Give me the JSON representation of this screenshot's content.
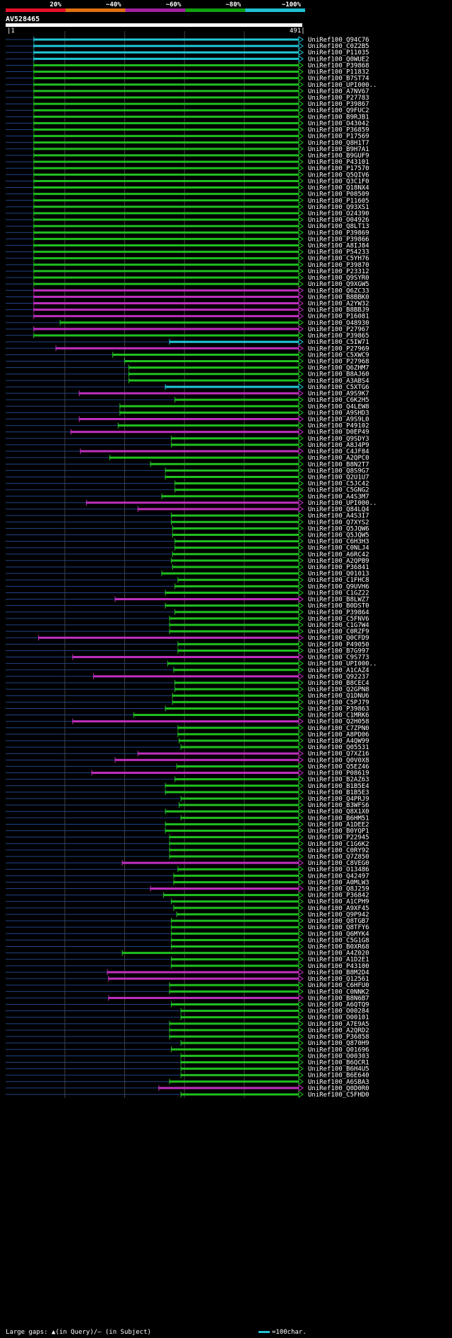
{
  "query": {
    "name": "AV528465",
    "start": 1,
    "end": 491
  },
  "scale": {
    "labels": [
      "20%",
      "~40%",
      "~60%",
      "~80%",
      "~100%"
    ],
    "colors": [
      "#e8102a",
      "#e07010",
      "#a020a0",
      "#10a010",
      "#20c0d0"
    ]
  },
  "colors": {
    "cyan": "#20c8d8",
    "green": "#20c020",
    "magenta": "#c030c0",
    "dim": "#224488",
    "insert": "#ffff80",
    "grid": "#404040"
  },
  "footer": {
    "gaps_text": "Large gaps: ▲(in Query)/— (in Subject)",
    "scale_text": "=100char."
  },
  "chart_data": {
    "type": "alignment",
    "query_length": 491,
    "hits": [
      {
        "name": "UniRef100_Q94C76",
        "start": 48,
        "color": "cyan"
      },
      {
        "name": "UniRef100_C0Z2B5",
        "start": 48,
        "color": "cyan"
      },
      {
        "name": "UniRef100_P11035",
        "start": 48,
        "color": "cyan"
      },
      {
        "name": "UniRef100_Q0WUE2",
        "start": 48,
        "color": "cyan"
      },
      {
        "name": "UniRef100_P39868",
        "start": 48,
        "color": "green"
      },
      {
        "name": "UniRef100_P11832",
        "start": 48,
        "color": "green"
      },
      {
        "name": "UniRef100_B7ST74",
        "start": 48,
        "color": "green"
      },
      {
        "name": "UniRef100_UPI000..",
        "start": 48,
        "color": "green"
      },
      {
        "name": "UniRef100_A7NV67",
        "start": 48,
        "color": "green"
      },
      {
        "name": "UniRef100_P27783",
        "start": 48,
        "color": "green"
      },
      {
        "name": "UniRef100_P39867",
        "start": 48,
        "color": "green"
      },
      {
        "name": "UniRef100_Q9FUC2",
        "start": 48,
        "color": "green"
      },
      {
        "name": "UniRef100_B9RJB1",
        "start": 48,
        "color": "green"
      },
      {
        "name": "UniRef100_O43042",
        "start": 48,
        "color": "green"
      },
      {
        "name": "UniRef100_P36859",
        "start": 48,
        "color": "green"
      },
      {
        "name": "UniRef100_P17569",
        "start": 48,
        "color": "green"
      },
      {
        "name": "UniRef100_Q8H1T7",
        "start": 48,
        "color": "green"
      },
      {
        "name": "UniRef100_B9H7A1",
        "start": 48,
        "color": "green"
      },
      {
        "name": "UniRef100_B9GUF9",
        "start": 48,
        "color": "green"
      },
      {
        "name": "UniRef100_P43101",
        "start": 48,
        "color": "green"
      },
      {
        "name": "UniRef100_P17570",
        "start": 48,
        "color": "green"
      },
      {
        "name": "UniRef100_Q5QIV6",
        "start": 48,
        "color": "green"
      },
      {
        "name": "UniRef100_Q3C1F0",
        "start": 48,
        "color": "green"
      },
      {
        "name": "UniRef100_Q18NX4",
        "start": 48,
        "color": "green"
      },
      {
        "name": "UniRef100_P08509",
        "start": 48,
        "color": "green"
      },
      {
        "name": "UniRef100_P11605",
        "start": 48,
        "color": "green"
      },
      {
        "name": "UniRef100_Q93XS1",
        "start": 48,
        "color": "green"
      },
      {
        "name": "UniRef100_O24390",
        "start": 48,
        "color": "green"
      },
      {
        "name": "UniRef100_O04926",
        "start": 48,
        "color": "green"
      },
      {
        "name": "UniRef100_Q8LT13",
        "start": 48,
        "color": "green"
      },
      {
        "name": "UniRef100_P39869",
        "start": 48,
        "color": "green"
      },
      {
        "name": "UniRef100_P39866",
        "start": 48,
        "color": "green"
      },
      {
        "name": "UniRef100_A8IJ84",
        "start": 48,
        "color": "green"
      },
      {
        "name": "UniRef100_P54233",
        "start": 48,
        "color": "green"
      },
      {
        "name": "UniRef100_C5YH76",
        "start": 48,
        "color": "green"
      },
      {
        "name": "UniRef100_P39870",
        "start": 48,
        "color": "green"
      },
      {
        "name": "UniRef100_P23312",
        "start": 48,
        "color": "green"
      },
      {
        "name": "UniRef100_Q9SYR0",
        "start": 48,
        "color": "green"
      },
      {
        "name": "UniRef100_Q9XGW5",
        "start": 48,
        "color": "green"
      },
      {
        "name": "UniRef100_Q6ZC33",
        "start": 48,
        "color": "magenta"
      },
      {
        "name": "UniRef100_B8BBK0",
        "start": 48,
        "color": "magenta"
      },
      {
        "name": "UniRef100_A2YW32",
        "start": 48,
        "color": "magenta"
      },
      {
        "name": "UniRef100_B8BBJ9",
        "start": 48,
        "color": "magenta"
      },
      {
        "name": "UniRef100_P16081",
        "start": 48,
        "color": "magenta"
      },
      {
        "name": "UniRef100_O48930",
        "start": 92,
        "color": "green"
      },
      {
        "name": "UniRef100_P27967",
        "start": 48,
        "color": "magenta"
      },
      {
        "name": "UniRef100_P39865",
        "start": 48,
        "color": "green"
      },
      {
        "name": "UniRef100_C5IW71",
        "start": 275,
        "color": "cyan"
      },
      {
        "name": "UniRef100_P27969",
        "start": 85,
        "color": "magenta"
      },
      {
        "name": "UniRef100_C5XWC9",
        "start": 180,
        "color": "green"
      },
      {
        "name": "UniRef100_P27968",
        "start": 200,
        "color": "green"
      },
      {
        "name": "UniRef100_Q6ZHM7",
        "start": 207,
        "color": "green"
      },
      {
        "name": "UniRef100_B8AJ60",
        "start": 207,
        "color": "green"
      },
      {
        "name": "UniRef100_A3ABS4",
        "start": 207,
        "color": "green"
      },
      {
        "name": "UniRef100_C5XTG6",
        "start": 268,
        "color": "cyan"
      },
      {
        "name": "UniRef100_A9S9K7",
        "start": 124,
        "color": "magenta"
      },
      {
        "name": "UniRef100_C6K2H5",
        "start": 284,
        "color": "green"
      },
      {
        "name": "UniRef100_Q4LEW8",
        "start": 192,
        "color": "green"
      },
      {
        "name": "UniRef100_A9SHD3",
        "start": 192,
        "color": "green"
      },
      {
        "name": "UniRef100_A9S9L0",
        "start": 124,
        "color": "magenta"
      },
      {
        "name": "UniRef100_P49102",
        "start": 189,
        "color": "green"
      },
      {
        "name": "UniRef100_D0EP49",
        "start": 110,
        "color": "magenta"
      },
      {
        "name": "UniRef100_Q9SDY3",
        "start": 278,
        "color": "green"
      },
      {
        "name": "UniRef100_A8J4P9",
        "start": 278,
        "color": "green"
      },
      {
        "name": "UniRef100_C4JF84",
        "start": 126,
        "color": "magenta"
      },
      {
        "name": "UniRef100_A2QPC0",
        "start": 175,
        "color": "green"
      },
      {
        "name": "UniRef100_B8N2T7",
        "start": 243,
        "color": "green"
      },
      {
        "name": "UniRef100_Q8S9G7",
        "start": 268,
        "color": "green"
      },
      {
        "name": "UniRef100_Q2U1U7",
        "start": 268,
        "color": "green"
      },
      {
        "name": "UniRef100_C5JC42",
        "start": 284,
        "color": "green"
      },
      {
        "name": "UniRef100_C5GNG2",
        "start": 284,
        "color": "green"
      },
      {
        "name": "UniRef100_A4S3M7",
        "start": 262,
        "color": "green"
      },
      {
        "name": "UniRef100_UPI000..",
        "start": 136,
        "color": "magenta"
      },
      {
        "name": "UniRef100_Q84LQ4",
        "start": 222,
        "color": "magenta"
      },
      {
        "name": "UniRef100_A4S3I7",
        "start": 278,
        "color": "green"
      },
      {
        "name": "UniRef100_Q7XYS2",
        "start": 278,
        "color": "green"
      },
      {
        "name": "UniRef100_Q5JQW6",
        "start": 280,
        "color": "green"
      },
      {
        "name": "UniRef100_Q5JQW5",
        "start": 280,
        "color": "green"
      },
      {
        "name": "UniRef100_C6H3H3",
        "start": 284,
        "color": "green"
      },
      {
        "name": "UniRef100_C0NLJ4",
        "start": 284,
        "color": "green"
      },
      {
        "name": "UniRef100_A6RC42",
        "start": 280,
        "color": "green"
      },
      {
        "name": "UniRef100_A2QPB9",
        "start": 278,
        "color": "green"
      },
      {
        "name": "UniRef100_P36841",
        "start": 280,
        "color": "green"
      },
      {
        "name": "UniRef100_Q01013",
        "start": 262,
        "color": "green"
      },
      {
        "name": "UniRef100_C1FHC8",
        "start": 289,
        "color": "green"
      },
      {
        "name": "UniRef100_Q9UVH6",
        "start": 284,
        "color": "green"
      },
      {
        "name": "UniRef100_C1GZ22",
        "start": 268,
        "color": "green"
      },
      {
        "name": "UniRef100_B8LWZ7",
        "start": 184,
        "color": "magenta"
      },
      {
        "name": "UniRef100_B0DST0",
        "start": 268,
        "color": "green"
      },
      {
        "name": "UniRef100_P39864",
        "start": 284,
        "color": "green"
      },
      {
        "name": "UniRef100_C5FNV6",
        "start": 275,
        "color": "green"
      },
      {
        "name": "UniRef100_C1G7W4",
        "start": 275,
        "color": "green"
      },
      {
        "name": "UniRef100_C0RZF9",
        "start": 275,
        "color": "green"
      },
      {
        "name": "UniRef100_Q0CFD9",
        "start": 56,
        "color": "magenta"
      },
      {
        "name": "UniRef100_P49050",
        "start": 289,
        "color": "green"
      },
      {
        "name": "UniRef100_B7G997",
        "start": 289,
        "color": "green"
      },
      {
        "name": "UniRef100_C9S773",
        "start": 113,
        "color": "magenta"
      },
      {
        "name": "UniRef100_UPI000..",
        "start": 272,
        "color": "green"
      },
      {
        "name": "UniRef100_A1CAZ4",
        "start": 282,
        "color": "green"
      },
      {
        "name": "UniRef100_Q92237",
        "start": 148,
        "color": "magenta"
      },
      {
        "name": "UniRef100_B8CEC4",
        "start": 284,
        "color": "green"
      },
      {
        "name": "UniRef100_Q2GPN8",
        "start": 284,
        "color": "green"
      },
      {
        "name": "UniRef100_Q1DNU6",
        "start": 280,
        "color": "green"
      },
      {
        "name": "UniRef100_C5PJ79",
        "start": 280,
        "color": "green"
      },
      {
        "name": "UniRef100_P39863",
        "start": 268,
        "color": "green"
      },
      {
        "name": "UniRef100_C1MRK6",
        "start": 215,
        "color": "green"
      },
      {
        "name": "UniRef100_Q2H058",
        "start": 113,
        "color": "magenta"
      },
      {
        "name": "UniRef100_C7ZPN0",
        "start": 289,
        "color": "green"
      },
      {
        "name": "UniRef100_A8PD06",
        "start": 289,
        "color": "green"
      },
      {
        "name": "UniRef100_A4QW99",
        "start": 291,
        "color": "green"
      },
      {
        "name": "UniRef100_Q05531",
        "start": 294,
        "color": "green"
      },
      {
        "name": "UniRef100_Q7XZ16",
        "start": 222,
        "color": "magenta"
      },
      {
        "name": "UniRef100_Q0V0X8",
        "start": 184,
        "color": "magenta"
      },
      {
        "name": "UniRef100_Q5EZ46",
        "start": 287,
        "color": "green"
      },
      {
        "name": "UniRef100_P08619",
        "start": 145,
        "color": "magenta"
      },
      {
        "name": "UniRef100_B2AZ63",
        "start": 284,
        "color": "green"
      },
      {
        "name": "UniRef100_B1B5E4",
        "start": 268,
        "color": "green"
      },
      {
        "name": "UniRef100_B1B5E3",
        "start": 268,
        "color": "green"
      },
      {
        "name": "UniRef100_Q4PRJ9",
        "start": 294,
        "color": "green"
      },
      {
        "name": "UniRef100_B3WFS6",
        "start": 291,
        "color": "green"
      },
      {
        "name": "UniRef100_Q8X1X0",
        "start": 268,
        "color": "green"
      },
      {
        "name": "UniRef100_B6HM51",
        "start": 294,
        "color": "green"
      },
      {
        "name": "UniRef100_A1DEE2",
        "start": 268,
        "color": "green"
      },
      {
        "name": "UniRef100_B0YQP1",
        "start": 268,
        "color": "green"
      },
      {
        "name": "UniRef100_P22945",
        "start": 275,
        "color": "green"
      },
      {
        "name": "UniRef100_C1G6K2",
        "start": 275,
        "color": "green"
      },
      {
        "name": "UniRef100_C0RY92",
        "start": 275,
        "color": "green"
      },
      {
        "name": "UniRef100_Q7Z850",
        "start": 275,
        "color": "green"
      },
      {
        "name": "UniRef100_C8VEG0",
        "start": 196,
        "color": "magenta"
      },
      {
        "name": "UniRef100_O13486",
        "start": 289,
        "color": "green"
      },
      {
        "name": "UniRef100_Q42497",
        "start": 282,
        "color": "green"
      },
      {
        "name": "UniRef100_A0MLW3",
        "start": 282,
        "color": "green"
      },
      {
        "name": "UniRef100_Q8J259",
        "start": 243,
        "color": "magenta"
      },
      {
        "name": "UniRef100_P36842",
        "start": 265,
        "color": "green"
      },
      {
        "name": "UniRef100_A1CPH9",
        "start": 278,
        "color": "green"
      },
      {
        "name": "UniRef100_A9XF45",
        "start": 282,
        "color": "green"
      },
      {
        "name": "UniRef100_Q9P942",
        "start": 287,
        "color": "green"
      },
      {
        "name": "UniRef100_Q8TGB7",
        "start": 278,
        "color": "green"
      },
      {
        "name": "UniRef100_Q8TFY6",
        "start": 278,
        "color": "green"
      },
      {
        "name": "UniRef100_Q6MYK4",
        "start": 278,
        "color": "green"
      },
      {
        "name": "UniRef100_C5G1G8",
        "start": 278,
        "color": "green"
      },
      {
        "name": "UniRef100_B0XR68",
        "start": 278,
        "color": "green"
      },
      {
        "name": "UniRef100_A4Z020",
        "start": 196,
        "color": "green"
      },
      {
        "name": "UniRef100_A1D2E1",
        "start": 278,
        "color": "green"
      },
      {
        "name": "UniRef100_P43100",
        "start": 278,
        "color": "green"
      },
      {
        "name": "UniRef100_B8M2D4",
        "start": 171,
        "color": "magenta"
      },
      {
        "name": "UniRef100_Q12561",
        "start": 173,
        "color": "magenta"
      },
      {
        "name": "UniRef100_C6HFU0",
        "start": 275,
        "color": "green"
      },
      {
        "name": "UniRef100_C0NNK2",
        "start": 275,
        "color": "green"
      },
      {
        "name": "UniRef100_B8N6B7",
        "start": 173,
        "color": "magenta"
      },
      {
        "name": "UniRef100_A6QTQ9",
        "start": 278,
        "color": "green"
      },
      {
        "name": "UniRef100_O00284",
        "start": 294,
        "color": "green"
      },
      {
        "name": "UniRef100_O00101",
        "start": 294,
        "color": "green"
      },
      {
        "name": "UniRef100_A7E9A5",
        "start": 275,
        "color": "green"
      },
      {
        "name": "UniRef100_A2QRD2",
        "start": 275,
        "color": "green"
      },
      {
        "name": "UniRef100_P36858",
        "start": 275,
        "color": "green"
      },
      {
        "name": "UniRef100_Q870H9",
        "start": 294,
        "color": "green"
      },
      {
        "name": "UniRef100_Q01696",
        "start": 278,
        "color": "green"
      },
      {
        "name": "UniRef100_O00303",
        "start": 294,
        "color": "green"
      },
      {
        "name": "UniRef100_B6QCR1",
        "start": 294,
        "color": "green"
      },
      {
        "name": "UniRef100_B6H4U5",
        "start": 294,
        "color": "green"
      },
      {
        "name": "UniRef100_B6E640",
        "start": 294,
        "color": "green"
      },
      {
        "name": "UniRef100_A6SBA3",
        "start": 275,
        "color": "green"
      },
      {
        "name": "UniRef100_Q0D0R0",
        "start": 257,
        "color": "magenta"
      },
      {
        "name": "UniRef100_C5FHD0",
        "start": 294,
        "color": "green"
      }
    ]
  }
}
